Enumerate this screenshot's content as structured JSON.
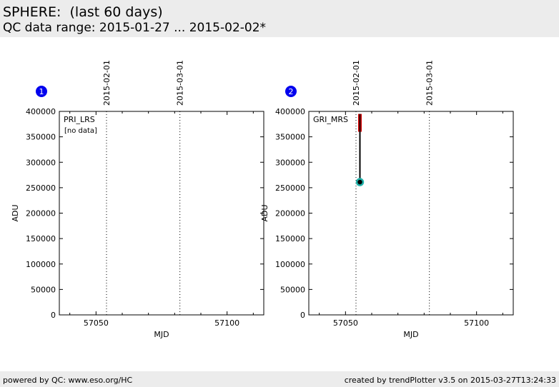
{
  "header": {
    "title": "SPHERE:  (last 60 days)",
    "subtitle": "QC data range: 2015-01-27 ... 2015-02-02*"
  },
  "footer": {
    "left": "powered by QC: www.eso.org/HC",
    "right": "created by trendPlotter v3.5 on 2015-03-27T13:24:33"
  },
  "colors": {
    "badge": "#0000ee",
    "series_point_outer": "#20b2aa",
    "series_point_inner": "#000000",
    "series_line": "#000000",
    "marker_bar": "#cc0000",
    "banner_bg": "#ececec"
  },
  "chart_data": [
    {
      "type": "scatter",
      "badge": "1",
      "panel_label": "PRI_LRS",
      "note": "[no data]",
      "xlabel": "MJD",
      "ylabel": "ADU",
      "xlim": [
        57036,
        57114
      ],
      "ylim": [
        0,
        400000
      ],
      "xticks_major": [
        57050,
        57100
      ],
      "xticks_minor": [
        57040,
        57060,
        57070,
        57080,
        57090,
        57110
      ],
      "yticks": [
        0,
        50000,
        100000,
        150000,
        200000,
        250000,
        300000,
        350000,
        400000
      ],
      "date_markers": [
        {
          "label": "2015-02-01",
          "mjd": 57054
        },
        {
          "label": "2015-03-01",
          "mjd": 57082
        }
      ],
      "points": []
    },
    {
      "type": "scatter",
      "badge": "2",
      "panel_label": "GRI_MRS",
      "note": "",
      "xlabel": "MJD",
      "ylabel": "ADU",
      "xlim": [
        57036,
        57114
      ],
      "ylim": [
        0,
        400000
      ],
      "xticks_major": [
        57050,
        57100
      ],
      "xticks_minor": [
        57040,
        57060,
        57070,
        57080,
        57090,
        57110
      ],
      "yticks": [
        0,
        50000,
        100000,
        150000,
        200000,
        250000,
        300000,
        350000,
        400000
      ],
      "date_markers": [
        {
          "label": "2015-02-01",
          "mjd": 57054
        },
        {
          "label": "2015-03-01",
          "mjd": 57082
        }
      ],
      "points": [
        {
          "x": 57055.5,
          "y": 261000
        }
      ],
      "range_line": {
        "x": 57055.5,
        "y_from": 261000,
        "y_to": 385000
      },
      "upper_marker": {
        "x": 57055.5,
        "y_from": 360000,
        "y_to": 395000
      }
    }
  ]
}
